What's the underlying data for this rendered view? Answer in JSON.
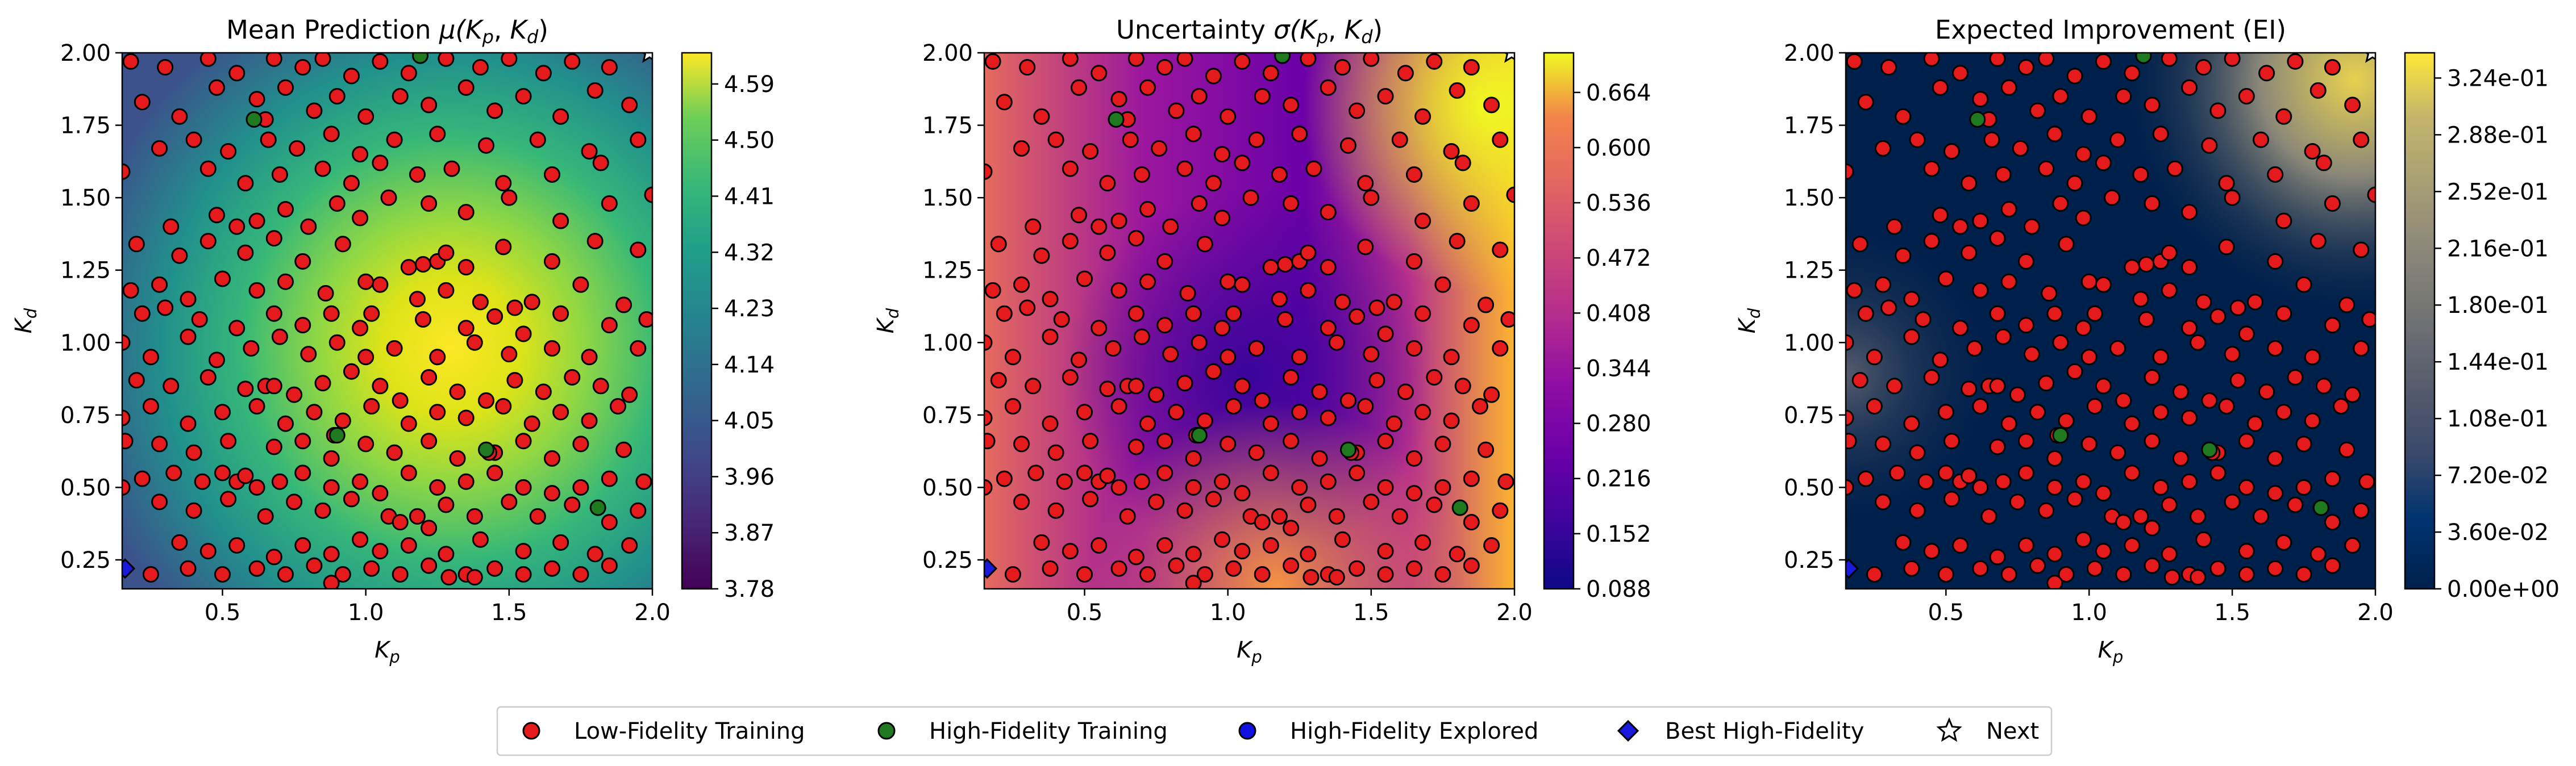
{
  "chart_data": [
    {
      "type": "heatmap",
      "title_text": "Mean Prediction ",
      "title_math": "μ(",
      "title_math_end": ")",
      "xlabel": "K",
      "xlabel_sub": "p",
      "ylabel": "K",
      "ylabel_sub": "d",
      "xlim": [
        0.15,
        2.0
      ],
      "ylim": [
        0.15,
        2.0
      ],
      "xticks": [
        "0.5",
        "1.0",
        "1.5",
        "2.0"
      ],
      "yticks": [
        "0.25",
        "0.50",
        "0.75",
        "1.00",
        "1.25",
        "1.50",
        "1.75",
        "2.00"
      ],
      "colormap": "viridis",
      "colorbar_range": [
        3.78,
        4.64
      ],
      "colorbar_ticks": [
        "3.78",
        "3.87",
        "3.96",
        "4.05",
        "4.14",
        "4.23",
        "4.32",
        "4.41",
        "4.50",
        "4.59"
      ]
    },
    {
      "type": "heatmap",
      "title_text": "Uncertainty ",
      "title_math": "σ(",
      "title_math_end": ")",
      "xlabel": "K",
      "xlabel_sub": "p",
      "ylabel": "K",
      "ylabel_sub": "d",
      "xlim": [
        0.15,
        2.0
      ],
      "ylim": [
        0.15,
        2.0
      ],
      "xticks": [
        "0.5",
        "1.0",
        "1.5",
        "2.0"
      ],
      "yticks": [
        "0.25",
        "0.50",
        "0.75",
        "1.00",
        "1.25",
        "1.50",
        "1.75",
        "2.00"
      ],
      "colormap": "plasma",
      "colorbar_range": [
        0.088,
        0.71
      ],
      "colorbar_ticks": [
        "0.088",
        "0.152",
        "0.216",
        "0.280",
        "0.344",
        "0.408",
        "0.472",
        "0.536",
        "0.600",
        "0.664"
      ]
    },
    {
      "type": "heatmap",
      "title_text": "Expected Improvement (EI)",
      "title_math": "",
      "title_math_end": "",
      "xlabel": "K",
      "xlabel_sub": "p",
      "ylabel": "K",
      "ylabel_sub": "d",
      "xlim": [
        0.15,
        2.0
      ],
      "ylim": [
        0.15,
        2.0
      ],
      "xticks": [
        "0.5",
        "1.0",
        "1.5",
        "2.0"
      ],
      "yticks": [
        "0.25",
        "0.50",
        "0.75",
        "1.00",
        "1.25",
        "1.50",
        "1.75",
        "2.00"
      ],
      "colormap": "cividis",
      "colorbar_range": [
        0.0,
        0.34
      ],
      "colorbar_ticks": [
        "0.00e+00",
        "3.60e-02",
        "7.20e-02",
        "1.08e-01",
        "1.44e-01",
        "1.80e-01",
        "2.16e-01",
        "2.52e-01",
        "2.88e-01",
        "3.24e-01"
      ]
    }
  ],
  "scatter": {
    "low_fidelity": [
      [
        0.18,
        1.97
      ],
      [
        0.3,
        1.95
      ],
      [
        0.45,
        1.98
      ],
      [
        0.55,
        1.93
      ],
      [
        0.68,
        1.98
      ],
      [
        0.78,
        1.95
      ],
      [
        0.85,
        1.98
      ],
      [
        0.95,
        1.92
      ],
      [
        1.05,
        1.97
      ],
      [
        1.15,
        1.93
      ],
      [
        1.28,
        1.98
      ],
      [
        1.4,
        1.95
      ],
      [
        1.5,
        1.98
      ],
      [
        1.62,
        1.93
      ],
      [
        1.72,
        1.97
      ],
      [
        1.85,
        1.95
      ],
      [
        0.22,
        1.83
      ],
      [
        0.35,
        1.78
      ],
      [
        0.48,
        1.88
      ],
      [
        0.62,
        1.84
      ],
      [
        0.72,
        1.88
      ],
      [
        0.82,
        1.8
      ],
      [
        0.9,
        1.85
      ],
      [
        1.0,
        1.78
      ],
      [
        1.12,
        1.85
      ],
      [
        1.22,
        1.82
      ],
      [
        1.35,
        1.88
      ],
      [
        1.45,
        1.8
      ],
      [
        1.55,
        1.85
      ],
      [
        1.68,
        1.78
      ],
      [
        1.8,
        1.87
      ],
      [
        1.92,
        1.82
      ],
      [
        0.28,
        1.67
      ],
      [
        0.4,
        1.7
      ],
      [
        0.52,
        1.66
      ],
      [
        0.66,
        1.7
      ],
      [
        0.76,
        1.67
      ],
      [
        0.88,
        1.72
      ],
      [
        0.98,
        1.65
      ],
      [
        1.1,
        1.7
      ],
      [
        1.25,
        1.72
      ],
      [
        1.42,
        1.68
      ],
      [
        1.6,
        1.7
      ],
      [
        1.78,
        1.66
      ],
      [
        1.95,
        1.7
      ],
      [
        0.15,
        1.59
      ],
      [
        0.45,
        1.6
      ],
      [
        0.58,
        1.55
      ],
      [
        0.7,
        1.58
      ],
      [
        0.85,
        1.6
      ],
      [
        0.95,
        1.55
      ],
      [
        1.05,
        1.62
      ],
      [
        1.18,
        1.58
      ],
      [
        1.3,
        1.6
      ],
      [
        1.48,
        1.55
      ],
      [
        1.65,
        1.58
      ],
      [
        1.82,
        1.62
      ],
      [
        0.32,
        1.4
      ],
      [
        0.48,
        1.44
      ],
      [
        0.55,
        1.4
      ],
      [
        0.62,
        1.42
      ],
      [
        0.72,
        1.46
      ],
      [
        0.8,
        1.4
      ],
      [
        0.9,
        1.48
      ],
      [
        0.98,
        1.43
      ],
      [
        1.08,
        1.5
      ],
      [
        1.22,
        1.48
      ],
      [
        1.35,
        1.45
      ],
      [
        1.5,
        1.5
      ],
      [
        1.68,
        1.42
      ],
      [
        1.85,
        1.48
      ],
      [
        2.0,
        1.51
      ],
      [
        0.2,
        1.34
      ],
      [
        0.35,
        1.3
      ],
      [
        0.45,
        1.35
      ],
      [
        0.58,
        1.31
      ],
      [
        0.68,
        1.36
      ],
      [
        0.78,
        1.28
      ],
      [
        0.92,
        1.34
      ],
      [
        1.15,
        1.26
      ],
      [
        1.2,
        1.27
      ],
      [
        1.25,
        1.28
      ],
      [
        1.28,
        1.31
      ],
      [
        1.35,
        1.26
      ],
      [
        1.48,
        1.33
      ],
      [
        1.65,
        1.28
      ],
      [
        1.8,
        1.35
      ],
      [
        1.95,
        1.32
      ],
      [
        0.18,
        1.18
      ],
      [
        0.28,
        1.2
      ],
      [
        0.38,
        1.15
      ],
      [
        0.5,
        1.22
      ],
      [
        0.62,
        1.18
      ],
      [
        0.72,
        1.21
      ],
      [
        0.86,
        1.17
      ],
      [
        1.0,
        1.21
      ],
      [
        1.05,
        1.2
      ],
      [
        1.18,
        1.15
      ],
      [
        1.28,
        1.18
      ],
      [
        1.4,
        1.14
      ],
      [
        1.52,
        1.12
      ],
      [
        1.58,
        1.14
      ],
      [
        1.75,
        1.2
      ],
      [
        1.9,
        1.13
      ],
      [
        0.22,
        1.1
      ],
      [
        0.3,
        1.12
      ],
      [
        0.42,
        1.08
      ],
      [
        0.55,
        1.05
      ],
      [
        0.68,
        1.1
      ],
      [
        0.78,
        1.06
      ],
      [
        0.88,
        1.1
      ],
      [
        0.98,
        1.05
      ],
      [
        1.02,
        1.1
      ],
      [
        1.2,
        1.08
      ],
      [
        1.35,
        1.05
      ],
      [
        1.45,
        1.09
      ],
      [
        1.55,
        1.03
      ],
      [
        1.68,
        1.1
      ],
      [
        1.85,
        1.06
      ],
      [
        1.98,
        1.08
      ],
      [
        0.15,
        1.0
      ],
      [
        0.25,
        0.95
      ],
      [
        0.38,
        1.02
      ],
      [
        0.48,
        0.94
      ],
      [
        0.6,
        0.98
      ],
      [
        0.7,
        1.02
      ],
      [
        0.8,
        0.96
      ],
      [
        0.9,
        1.0
      ],
      [
        1.0,
        0.95
      ],
      [
        1.1,
        0.98
      ],
      [
        1.25,
        0.95
      ],
      [
        1.38,
        1.0
      ],
      [
        1.5,
        0.96
      ],
      [
        1.65,
        0.98
      ],
      [
        1.78,
        0.95
      ],
      [
        1.95,
        0.98
      ],
      [
        0.2,
        0.87
      ],
      [
        0.32,
        0.85
      ],
      [
        0.45,
        0.88
      ],
      [
        0.58,
        0.84
      ],
      [
        0.65,
        0.85
      ],
      [
        0.68,
        0.85
      ],
      [
        0.75,
        0.82
      ],
      [
        0.85,
        0.86
      ],
      [
        0.95,
        0.9
      ],
      [
        1.05,
        0.85
      ],
      [
        1.12,
        0.8
      ],
      [
        1.22,
        0.88
      ],
      [
        1.32,
        0.83
      ],
      [
        1.42,
        0.8
      ],
      [
        1.52,
        0.87
      ],
      [
        1.62,
        0.83
      ],
      [
        1.72,
        0.88
      ],
      [
        1.82,
        0.85
      ],
      [
        1.92,
        0.82
      ],
      [
        0.15,
        0.74
      ],
      [
        0.25,
        0.78
      ],
      [
        0.38,
        0.72
      ],
      [
        0.5,
        0.76
      ],
      [
        0.62,
        0.78
      ],
      [
        0.72,
        0.72
      ],
      [
        0.82,
        0.76
      ],
      [
        0.92,
        0.73
      ],
      [
        1.02,
        0.78
      ],
      [
        1.15,
        0.72
      ],
      [
        1.25,
        0.76
      ],
      [
        1.35,
        0.74
      ],
      [
        1.48,
        0.78
      ],
      [
        1.58,
        0.72
      ],
      [
        1.68,
        0.76
      ],
      [
        1.78,
        0.73
      ],
      [
        1.88,
        0.78
      ],
      [
        0.16,
        0.66
      ],
      [
        0.28,
        0.65
      ],
      [
        0.4,
        0.62
      ],
      [
        0.52,
        0.66
      ],
      [
        0.68,
        0.64
      ],
      [
        0.78,
        0.66
      ],
      [
        0.88,
        0.6
      ],
      [
        1.0,
        0.65
      ],
      [
        1.1,
        0.62
      ],
      [
        1.22,
        0.66
      ],
      [
        1.32,
        0.6
      ],
      [
        1.45,
        0.62
      ],
      [
        1.55,
        0.66
      ],
      [
        1.65,
        0.6
      ],
      [
        1.75,
        0.65
      ],
      [
        1.9,
        0.63
      ],
      [
        0.15,
        0.5
      ],
      [
        0.22,
        0.53
      ],
      [
        0.33,
        0.55
      ],
      [
        0.43,
        0.52
      ],
      [
        0.5,
        0.55
      ],
      [
        0.55,
        0.52
      ],
      [
        0.58,
        0.54
      ],
      [
        0.62,
        0.5
      ],
      [
        0.7,
        0.52
      ],
      [
        0.78,
        0.55
      ],
      [
        0.88,
        0.5
      ],
      [
        0.98,
        0.52
      ],
      [
        1.05,
        0.48
      ],
      [
        1.15,
        0.55
      ],
      [
        1.25,
        0.5
      ],
      [
        1.35,
        0.52
      ],
      [
        1.45,
        0.55
      ],
      [
        1.55,
        0.5
      ],
      [
        1.65,
        0.48
      ],
      [
        1.75,
        0.5
      ],
      [
        1.85,
        0.53
      ],
      [
        1.97,
        0.52
      ],
      [
        0.28,
        0.45
      ],
      [
        0.4,
        0.42
      ],
      [
        0.52,
        0.46
      ],
      [
        0.65,
        0.4
      ],
      [
        0.75,
        0.45
      ],
      [
        0.85,
        0.42
      ],
      [
        0.95,
        0.46
      ],
      [
        1.08,
        0.4
      ],
      [
        1.12,
        0.38
      ],
      [
        1.18,
        0.4
      ],
      [
        1.22,
        0.36
      ],
      [
        1.28,
        0.44
      ],
      [
        1.38,
        0.4
      ],
      [
        1.5,
        0.45
      ],
      [
        1.6,
        0.4
      ],
      [
        1.72,
        0.44
      ],
      [
        1.85,
        0.38
      ],
      [
        1.95,
        0.42
      ],
      [
        0.35,
        0.31
      ],
      [
        0.45,
        0.28
      ],
      [
        0.55,
        0.3
      ],
      [
        0.68,
        0.26
      ],
      [
        0.78,
        0.3
      ],
      [
        0.88,
        0.27
      ],
      [
        0.98,
        0.32
      ],
      [
        1.05,
        0.28
      ],
      [
        1.15,
        0.3
      ],
      [
        1.28,
        0.27
      ],
      [
        1.4,
        0.32
      ],
      [
        1.55,
        0.28
      ],
      [
        1.68,
        0.31
      ],
      [
        1.8,
        0.27
      ],
      [
        1.92,
        0.3
      ],
      [
        0.25,
        0.2
      ],
      [
        0.38,
        0.22
      ],
      [
        0.5,
        0.2
      ],
      [
        0.62,
        0.22
      ],
      [
        0.72,
        0.2
      ],
      [
        0.82,
        0.23
      ],
      [
        0.92,
        0.2
      ],
      [
        1.02,
        0.22
      ],
      [
        1.12,
        0.2
      ],
      [
        1.22,
        0.23
      ],
      [
        1.35,
        0.2
      ],
      [
        1.45,
        0.22
      ],
      [
        1.55,
        0.2
      ],
      [
        1.65,
        0.22
      ],
      [
        1.75,
        0.2
      ],
      [
        1.85,
        0.23
      ],
      [
        0.65,
        1.77
      ],
      [
        1.43,
        0.62
      ],
      [
        0.89,
        0.68
      ],
      [
        1.29,
        0.19
      ],
      [
        1.38,
        0.19
      ],
      [
        0.88,
        0.17
      ]
    ],
    "high_fidelity": [
      [
        1.19,
        1.99
      ],
      [
        0.61,
        1.77
      ],
      [
        0.9,
        0.68
      ],
      [
        1.42,
        0.63
      ],
      [
        1.81,
        0.43
      ]
    ],
    "best": [
      [
        0.16,
        0.22
      ]
    ],
    "next": [
      [
        1.99,
        2.0
      ]
    ]
  },
  "legend": {
    "low_fidelity": "Low-Fidelity Training",
    "high_fidelity": "High-Fidelity Training",
    "hf_explored": "High-Fidelity Explored",
    "best": "Best High-Fidelity",
    "next": "Next"
  },
  "colors": {
    "low_fidelity": "#e41a1c",
    "high_fidelity": "#1f7a1f",
    "hf_explored": "#1010e0",
    "best": "#1a1adc"
  }
}
